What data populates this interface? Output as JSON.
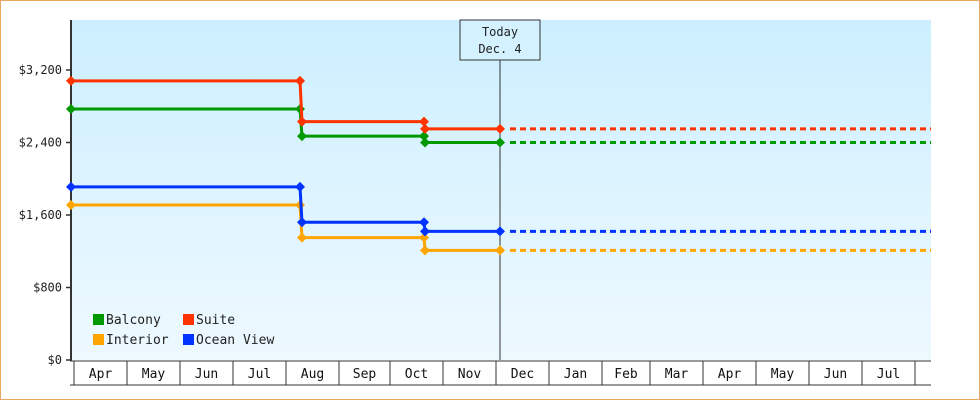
{
  "chart_data": {
    "type": "line",
    "subtype": "step",
    "title": "",
    "xlabel": "",
    "ylabel": "",
    "ylim": [
      0,
      3840
    ],
    "y_ticks": [
      "$0",
      "$800",
      "$1,600",
      "$2,400",
      "$3,200"
    ],
    "y_tick_values": [
      0,
      800,
      1600,
      2400,
      3200
    ],
    "x_ticks": [
      "Apr",
      "May",
      "Jun",
      "Jul",
      "Aug",
      "Sep",
      "Oct",
      "Nov",
      "Dec",
      "Jan",
      "Feb",
      "Mar",
      "Apr",
      "May",
      "Jun",
      "Jul"
    ],
    "grid": false,
    "legend_position": "lower-left",
    "today_marker": {
      "line1": "Today",
      "line2": "Dec. 4"
    },
    "series": [
      {
        "name": "Balcony",
        "color": "#009900",
        "points": [
          {
            "x": "Apr 1",
            "y": 2770
          },
          {
            "x": "Aug 1",
            "y": 2770
          },
          {
            "x": "Aug 2",
            "y": 2470
          },
          {
            "x": "Oct 7",
            "y": 2470
          },
          {
            "x": "Oct 7",
            "y": 2400
          },
          {
            "x": "Dec 4",
            "y": 2400
          }
        ],
        "projected": 2400
      },
      {
        "name": "Suite",
        "color": "#ff3300",
        "points": [
          {
            "x": "Apr 1",
            "y": 3080
          },
          {
            "x": "Aug 1",
            "y": 3080
          },
          {
            "x": "Aug 2",
            "y": 2630
          },
          {
            "x": "Oct 7",
            "y": 2630
          },
          {
            "x": "Oct 7",
            "y": 2550
          },
          {
            "x": "Dec 4",
            "y": 2550
          }
        ],
        "projected": 2550
      },
      {
        "name": "Interior",
        "color": "#ffa500",
        "points": [
          {
            "x": "Apr 1",
            "y": 1710
          },
          {
            "x": "Aug 1",
            "y": 1710
          },
          {
            "x": "Aug 2",
            "y": 1350
          },
          {
            "x": "Oct 7",
            "y": 1350
          },
          {
            "x": "Oct 7",
            "y": 1210
          },
          {
            "x": "Dec 4",
            "y": 1210
          }
        ],
        "projected": 1210
      },
      {
        "name": "Ocean View",
        "color": "#0033ff",
        "points": [
          {
            "x": "Apr 1",
            "y": 1910
          },
          {
            "x": "Aug 1",
            "y": 1910
          },
          {
            "x": "Aug 2",
            "y": 1520
          },
          {
            "x": "Oct 7",
            "y": 1520
          },
          {
            "x": "Oct 7",
            "y": 1420
          },
          {
            "x": "Dec 4",
            "y": 1420
          }
        ],
        "projected": 1420
      }
    ]
  },
  "legend": [
    {
      "label": "Balcony",
      "color": "#009900"
    },
    {
      "label": "Suite",
      "color": "#ff3300"
    },
    {
      "label": "Interior",
      "color": "#ffa500"
    },
    {
      "label": "Ocean View",
      "color": "#0033ff"
    }
  ],
  "colors": {
    "border": "#e8a860",
    "plot_top": "#ccefff",
    "plot_bottom": "#eef9ff",
    "axis": "#333333"
  }
}
